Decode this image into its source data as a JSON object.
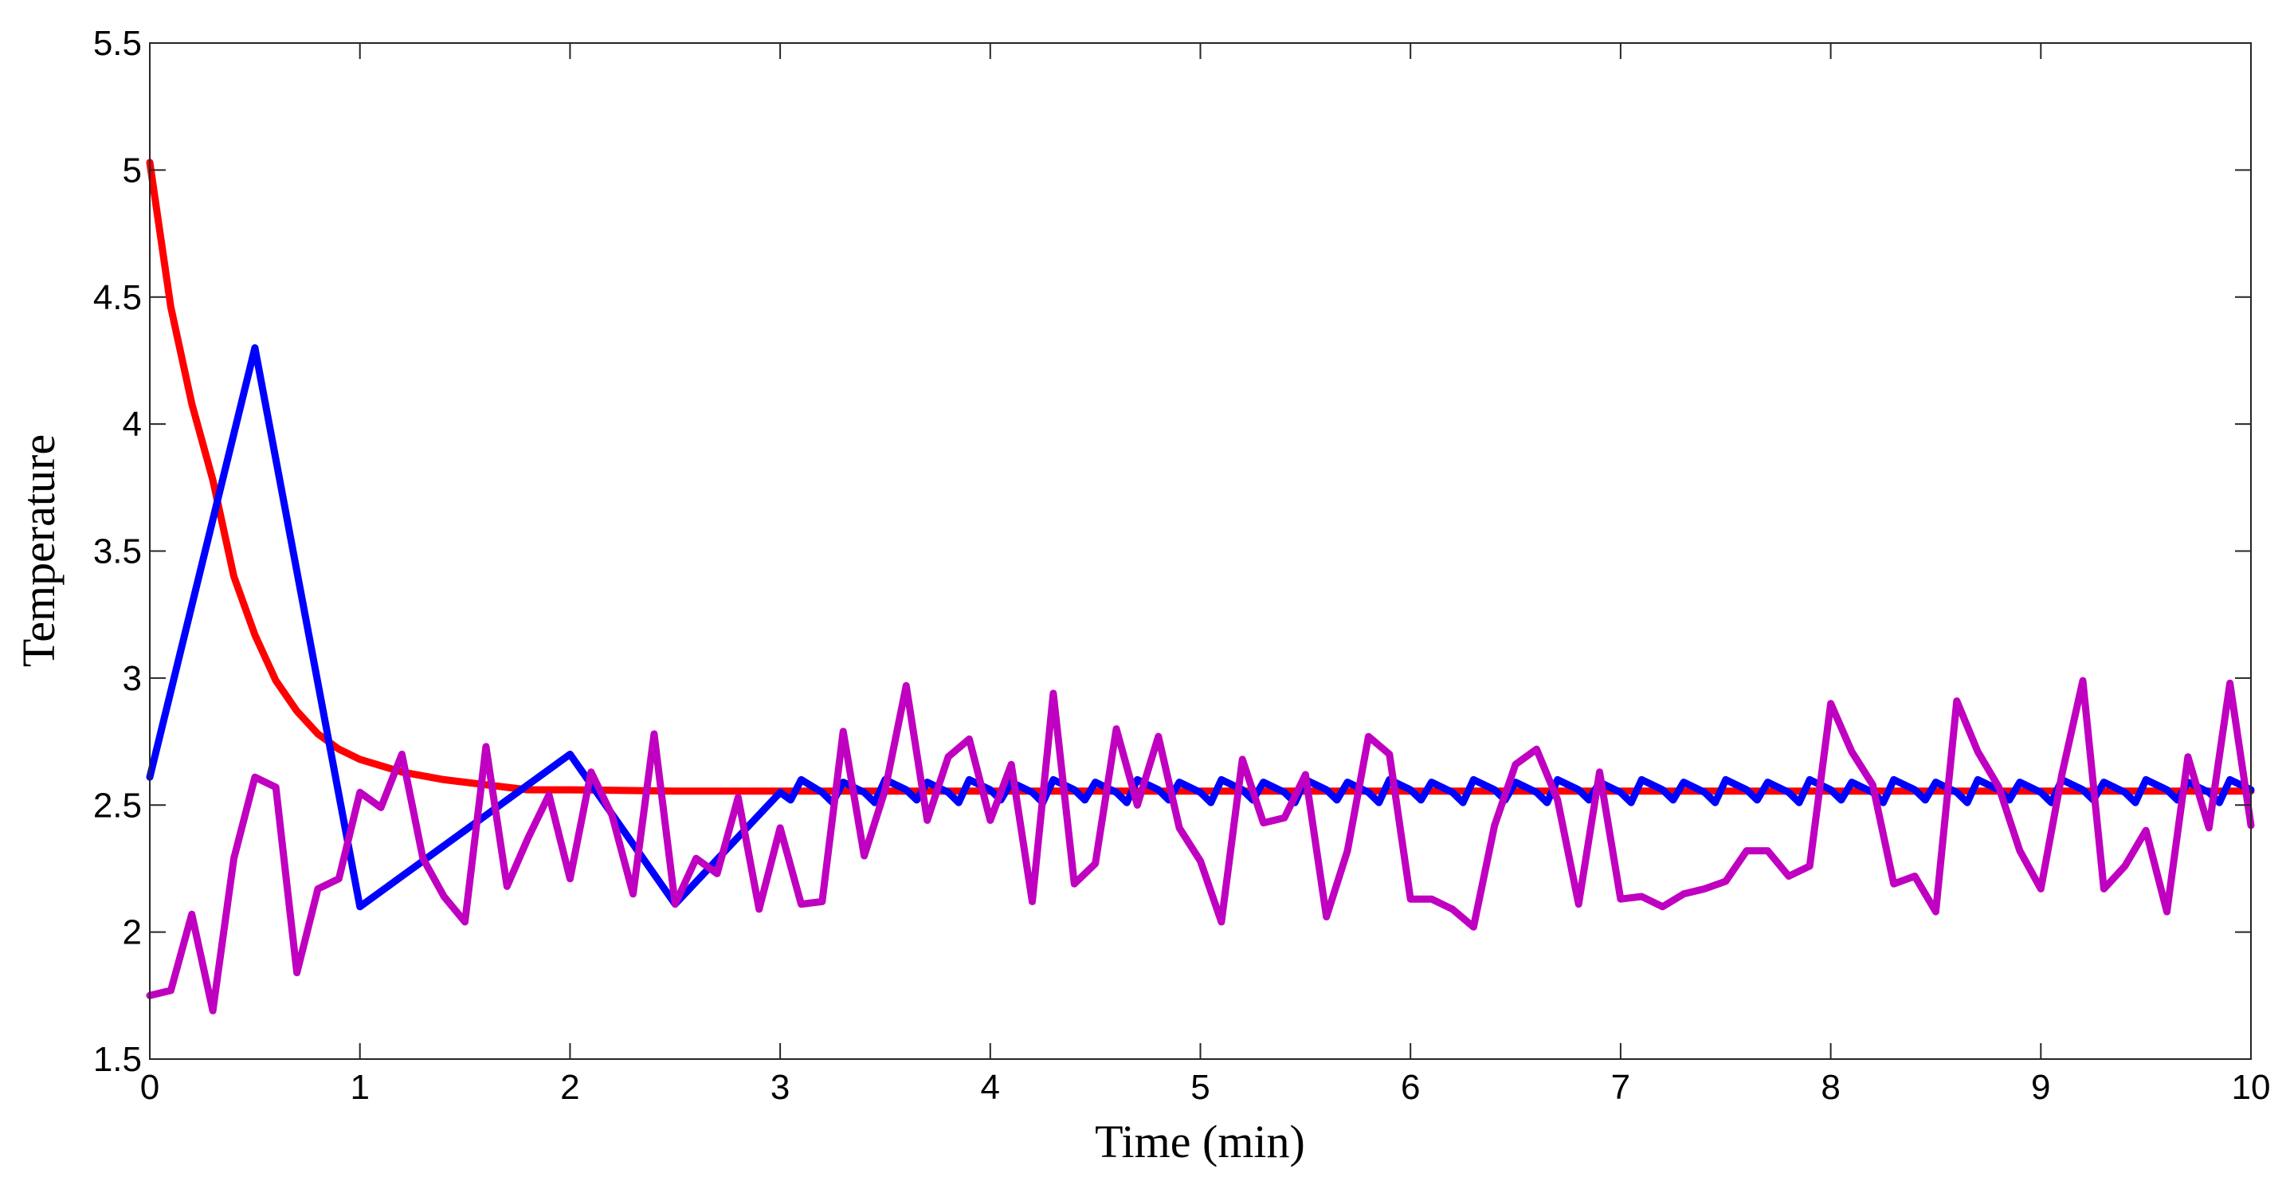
{
  "chart_data": {
    "type": "line",
    "xlabel": "Time (min)",
    "ylabel": "Temperature",
    "xlim": [
      0,
      10
    ],
    "ylim": [
      1.5,
      5.5
    ],
    "xticks": [
      "0",
      "1",
      "2",
      "3",
      "4",
      "5",
      "6",
      "7",
      "8",
      "9",
      "10"
    ],
    "yticks": [
      "1.5",
      "2",
      "2.5",
      "3",
      "3.5",
      "4",
      "4.5",
      "5",
      "5.5"
    ],
    "grid": false,
    "legend": "none",
    "series": [
      {
        "color": "#ff0000",
        "x": [
          0,
          0.1,
          0.2,
          0.3,
          0.4,
          0.5,
          0.6,
          0.7,
          0.8,
          0.9,
          1.0,
          1.2,
          1.4,
          1.6,
          1.8,
          2.0,
          2.5,
          3,
          4,
          5,
          6,
          7,
          8,
          9,
          10
        ],
        "y": [
          5.03,
          4.46,
          4.08,
          3.78,
          3.4,
          3.17,
          2.99,
          2.87,
          2.78,
          2.72,
          2.68,
          2.63,
          2.6,
          2.58,
          2.56,
          2.56,
          2.555,
          2.555,
          2.555,
          2.555,
          2.555,
          2.555,
          2.555,
          2.555,
          2.555
        ]
      },
      {
        "color": "#0000ff",
        "x": [
          0,
          0.5,
          1.0,
          2.0,
          2.5,
          3.0,
          3.05,
          3.1,
          3.2,
          3.25,
          3.3,
          3.4,
          3.45,
          3.5,
          3.6,
          3.65,
          3.7,
          3.8,
          3.85,
          3.9,
          4.0,
          4.05,
          4.1,
          4.2,
          4.25,
          4.3,
          4.4,
          4.45,
          4.5,
          4.6,
          4.65,
          4.7,
          4.8,
          4.85,
          4.9,
          5.0,
          5.05,
          5.1,
          5.2,
          5.25,
          5.3,
          5.4,
          5.45,
          5.5,
          5.6,
          5.65,
          5.7,
          5.8,
          5.85,
          5.9,
          6.0,
          6.05,
          6.1,
          6.2,
          6.25,
          6.3,
          6.4,
          6.45,
          6.5,
          6.6,
          6.65,
          6.7,
          6.8,
          6.85,
          6.9,
          7.0,
          7.05,
          7.1,
          7.2,
          7.25,
          7.3,
          7.4,
          7.45,
          7.5,
          7.6,
          7.65,
          7.7,
          7.8,
          7.85,
          7.9,
          8.0,
          8.05,
          8.1,
          8.2,
          8.25,
          8.3,
          8.4,
          8.45,
          8.5,
          8.6,
          8.65,
          8.7,
          8.8,
          8.85,
          8.9,
          9.0,
          9.05,
          9.1,
          9.2,
          9.25,
          9.3,
          9.4,
          9.45,
          9.5,
          9.6,
          9.65,
          9.7,
          9.8,
          9.85,
          9.9,
          10.0
        ],
        "y": [
          2.61,
          4.3,
          2.1,
          2.7,
          2.11,
          2.55,
          2.52,
          2.6,
          2.55,
          2.51,
          2.59,
          2.55,
          2.51,
          2.6,
          2.56,
          2.52,
          2.59,
          2.55,
          2.51,
          2.6,
          2.56,
          2.52,
          2.59,
          2.55,
          2.51,
          2.6,
          2.56,
          2.52,
          2.59,
          2.55,
          2.51,
          2.6,
          2.56,
          2.52,
          2.59,
          2.55,
          2.51,
          2.6,
          2.56,
          2.52,
          2.59,
          2.55,
          2.51,
          2.6,
          2.56,
          2.52,
          2.59,
          2.55,
          2.51,
          2.6,
          2.56,
          2.52,
          2.59,
          2.55,
          2.51,
          2.6,
          2.56,
          2.52,
          2.59,
          2.55,
          2.51,
          2.6,
          2.56,
          2.52,
          2.59,
          2.55,
          2.51,
          2.6,
          2.56,
          2.52,
          2.59,
          2.55,
          2.51,
          2.6,
          2.56,
          2.52,
          2.59,
          2.55,
          2.51,
          2.6,
          2.56,
          2.52,
          2.59,
          2.55,
          2.51,
          2.6,
          2.56,
          2.52,
          2.59,
          2.55,
          2.51,
          2.6,
          2.56,
          2.52,
          2.59,
          2.55,
          2.51,
          2.6,
          2.56,
          2.52,
          2.59,
          2.55,
          2.51,
          2.6,
          2.56,
          2.52,
          2.59,
          2.55,
          2.51,
          2.6,
          2.56
        ]
      },
      {
        "color": "#c000c0",
        "x": [
          0,
          0.1,
          0.2,
          0.3,
          0.4,
          0.5,
          0.6,
          0.7,
          0.8,
          0.9,
          1.0,
          1.1,
          1.2,
          1.3,
          1.4,
          1.5,
          1.6,
          1.7,
          1.8,
          1.9,
          2.0,
          2.1,
          2.2,
          2.3,
          2.4,
          2.5,
          2.6,
          2.7,
          2.8,
          2.9,
          3.0,
          3.1,
          3.2,
          3.3,
          3.4,
          3.5,
          3.6,
          3.7,
          3.8,
          3.9,
          4.0,
          4.1,
          4.2,
          4.3,
          4.4,
          4.5,
          4.6,
          4.7,
          4.8,
          4.9,
          5.0,
          5.1,
          5.2,
          5.3,
          5.4,
          5.5,
          5.6,
          5.7,
          5.8,
          5.9,
          6.0,
          6.1,
          6.2,
          6.3,
          6.4,
          6.5,
          6.6,
          6.7,
          6.8,
          6.9,
          7.0,
          7.1,
          7.2,
          7.3,
          7.4,
          7.5,
          7.6,
          7.7,
          7.8,
          7.9,
          8.0,
          8.1,
          8.2,
          8.3,
          8.4,
          8.5,
          8.6,
          8.7,
          8.8,
          8.9,
          9.0,
          9.1,
          9.2,
          9.3,
          9.4,
          9.5,
          9.6,
          9.7,
          9.8,
          9.9,
          10.0
        ],
        "y": [
          1.75,
          1.77,
          2.07,
          1.69,
          2.29,
          2.61,
          2.57,
          1.84,
          2.17,
          2.21,
          2.55,
          2.49,
          2.7,
          2.29,
          2.14,
          2.04,
          2.73,
          2.18,
          2.37,
          2.54,
          2.21,
          2.63,
          2.46,
          2.15,
          2.78,
          2.11,
          2.29,
          2.23,
          2.53,
          2.09,
          2.41,
          2.11,
          2.12,
          2.79,
          2.3,
          2.56,
          2.97,
          2.44,
          2.69,
          2.76,
          2.44,
          2.66,
          2.12,
          2.94,
          2.19,
          2.27,
          2.8,
          2.5,
          2.77,
          2.41,
          2.28,
          2.04,
          2.68,
          2.43,
          2.45,
          2.62,
          2.06,
          2.32,
          2.77,
          2.7,
          2.13,
          2.13,
          2.09,
          2.02,
          2.42,
          2.66,
          2.72,
          2.52,
          2.11,
          2.63,
          2.13,
          2.14,
          2.1,
          2.15,
          2.17,
          2.2,
          2.32,
          2.32,
          2.22,
          2.26,
          2.9,
          2.71,
          2.58,
          2.19,
          2.22,
          2.08,
          2.91,
          2.71,
          2.57,
          2.32,
          2.17,
          2.62,
          2.99,
          2.17,
          2.26,
          2.4,
          2.08,
          2.69,
          2.41,
          2.98,
          2.42
        ]
      }
    ]
  }
}
